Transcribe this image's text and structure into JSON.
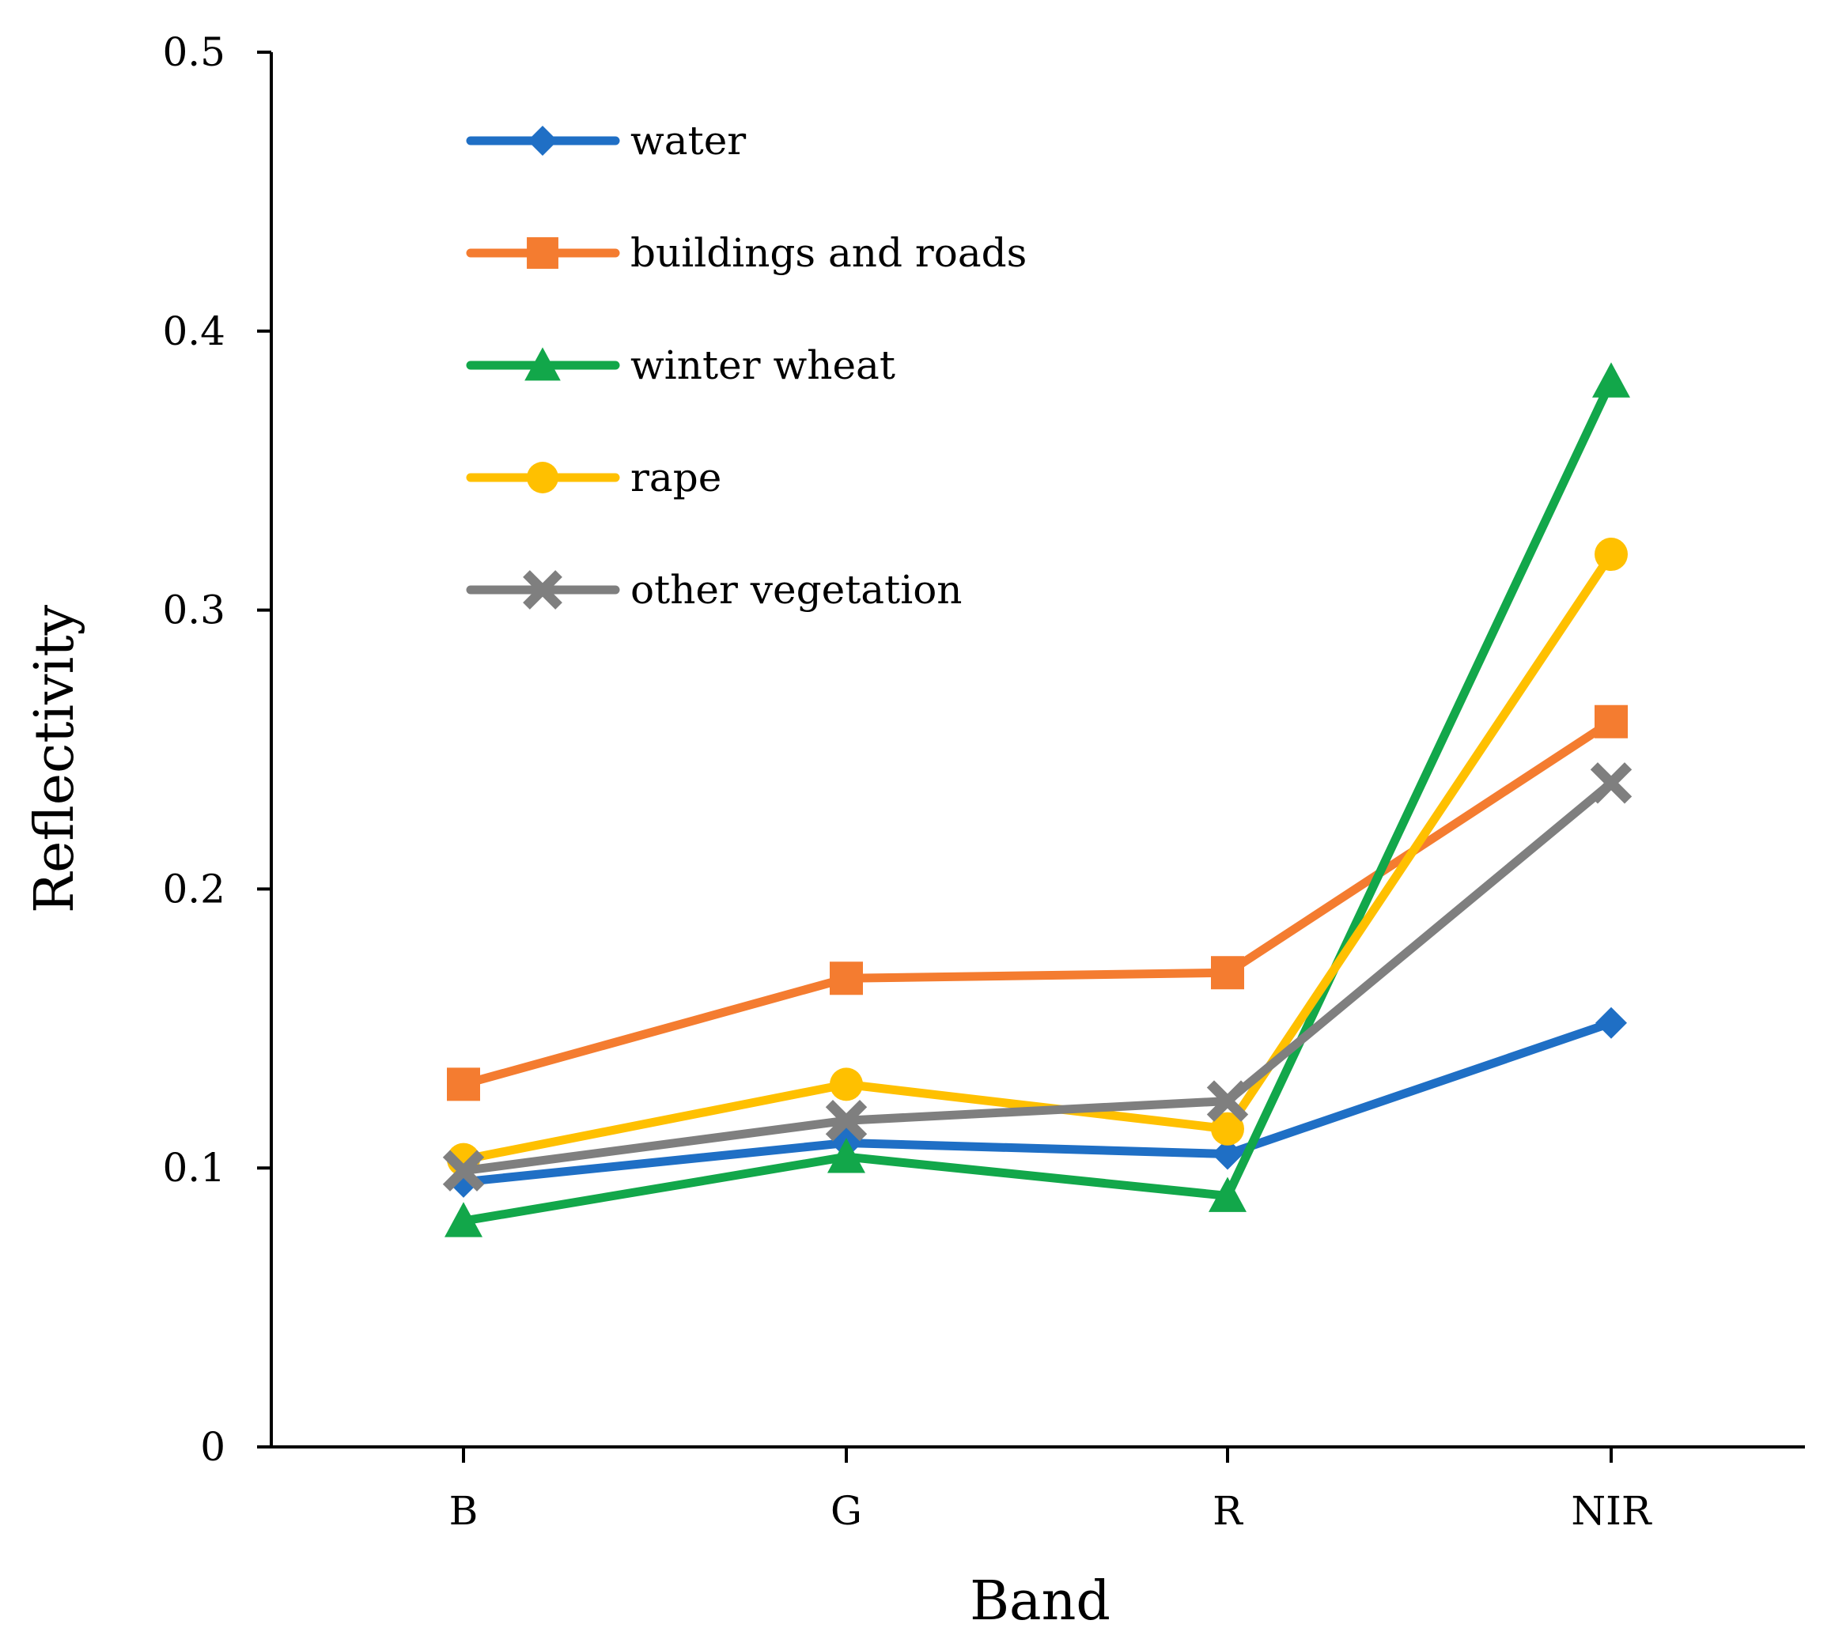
{
  "chart_data": {
    "type": "line",
    "title": "",
    "xlabel": "Band",
    "ylabel": "Reflectivity",
    "categories": [
      "B",
      "G",
      "R",
      "NIR"
    ],
    "ylim": [
      0,
      0.5
    ],
    "yticks": [
      "0",
      "0.1",
      "0.2",
      "0.3",
      "0.4",
      "0.5"
    ],
    "grid": false,
    "legend_position": "top-left",
    "series": [
      {
        "name": "water",
        "color": "#1F6FC5",
        "marker": "diamond",
        "values": [
          0.095,
          0.109,
          0.105,
          0.152
        ]
      },
      {
        "name": "buildings and roads",
        "color": "#F47C30",
        "marker": "square",
        "values": [
          0.13,
          0.168,
          0.17,
          0.26
        ]
      },
      {
        "name": "winter wheat",
        "color": "#12A74A",
        "marker": "triangle",
        "values": [
          0.081,
          0.104,
          0.09,
          0.382
        ]
      },
      {
        "name": "rape",
        "color": "#FFC000",
        "marker": "circle",
        "values": [
          0.103,
          0.13,
          0.114,
          0.32
        ]
      },
      {
        "name": "other vegetation",
        "color": "#7F7F7F",
        "marker": "x",
        "values": [
          0.099,
          0.117,
          0.124,
          0.238
        ]
      }
    ]
  }
}
